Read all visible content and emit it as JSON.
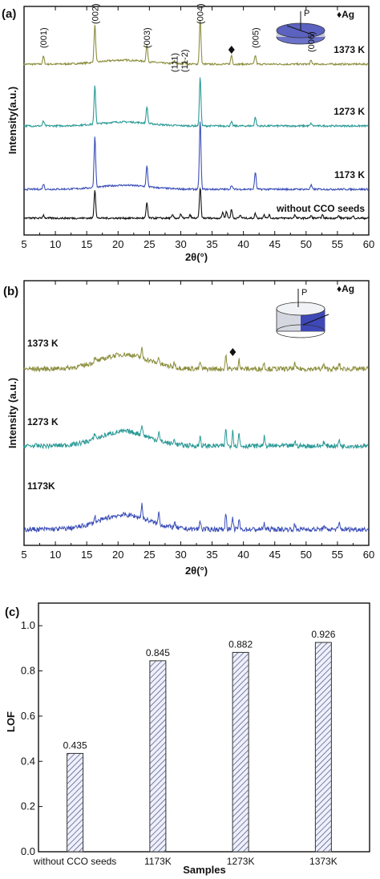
{
  "chart_data": [
    {
      "type": "line",
      "panel_label": "(a)",
      "xlabel": "2θ(°)",
      "ylabel": "Intensity(a.u.)",
      "xlim": [
        5,
        60
      ],
      "x_ticks": [
        5,
        10,
        15,
        20,
        25,
        30,
        35,
        40,
        45,
        50,
        55,
        60
      ],
      "legend": "♦Ag",
      "peak_labels": [
        {
          "text": "(001)",
          "x": 8.1
        },
        {
          "text": "(002)",
          "x": 16.3
        },
        {
          "text": "(003)",
          "x": 24.6
        },
        {
          "text": "(111)",
          "x": 29.0
        },
        {
          "text": "(11-2)",
          "x": 30.6
        },
        {
          "text": "(004)",
          "x": 33.1
        },
        {
          "text": "(005)",
          "x": 41.9
        },
        {
          "text": "(006)",
          "x": 50.8
        }
      ],
      "ag_marker_x": 38.1,
      "series": [
        {
          "name": "1373 K",
          "color": "#8c8f3e",
          "peaks": [
            [
              8.1,
              0.18
            ],
            [
              16.3,
              0.85
            ],
            [
              24.6,
              0.38
            ],
            [
              29.0,
              0.06
            ],
            [
              30.6,
              0.06
            ],
            [
              33.1,
              1.0
            ],
            [
              38.1,
              0.2
            ],
            [
              41.9,
              0.2
            ],
            [
              50.8,
              0.08
            ]
          ]
        },
        {
          "name": "1273 K",
          "color": "#2a9a96",
          "peaks": [
            [
              8.1,
              0.1
            ],
            [
              16.3,
              0.8
            ],
            [
              24.6,
              0.35
            ],
            [
              33.1,
              1.0
            ],
            [
              38.1,
              0.08
            ],
            [
              41.9,
              0.18
            ],
            [
              50.8,
              0.05
            ]
          ]
        },
        {
          "name": "1173 K",
          "color": "#3c4fb8",
          "peaks": [
            [
              8.1,
              0.08
            ],
            [
              16.3,
              0.75
            ],
            [
              24.6,
              0.3
            ],
            [
              33.1,
              1.0
            ],
            [
              38.1,
              0.06
            ],
            [
              41.9,
              0.25
            ],
            [
              50.8,
              0.06
            ]
          ]
        },
        {
          "name": "without CCO seeds",
          "color": "#111111",
          "peaks": [
            [
              8.1,
              0.1
            ],
            [
              16.3,
              0.95
            ],
            [
              24.6,
              0.5
            ],
            [
              28.7,
              0.1
            ],
            [
              30.0,
              0.12
            ],
            [
              31.5,
              0.1
            ],
            [
              33.1,
              1.0
            ],
            [
              36.7,
              0.2
            ],
            [
              37.3,
              0.22
            ],
            [
              38.1,
              0.28
            ],
            [
              39.5,
              0.1
            ],
            [
              41.9,
              0.15
            ],
            [
              43.3,
              0.12
            ],
            [
              44.1,
              0.1
            ],
            [
              48.2,
              0.1
            ],
            [
              50.8,
              0.08
            ],
            [
              52.6,
              0.1
            ],
            [
              55.2,
              0.08
            ],
            [
              57.5,
              0.06
            ]
          ]
        }
      ]
    },
    {
      "type": "line",
      "panel_label": "(b)",
      "xlabel": "2θ(°)",
      "ylabel": "Intensity (a.u.)",
      "xlim": [
        5,
        60
      ],
      "x_ticks": [
        5,
        10,
        15,
        20,
        25,
        30,
        35,
        40,
        45,
        50,
        55,
        60
      ],
      "legend": "♦Ag",
      "ag_marker_x": 38.3,
      "series": [
        {
          "name": "1373 K",
          "color": "#8c8f3e",
          "peaks": [
            [
              16.3,
              0.3
            ],
            [
              23.8,
              0.5
            ],
            [
              26.5,
              0.4
            ],
            [
              29.0,
              0.3
            ],
            [
              33.1,
              0.4
            ],
            [
              37.2,
              0.8
            ],
            [
              39.3,
              0.6
            ],
            [
              43.3,
              0.4
            ],
            [
              48.2,
              0.3
            ],
            [
              52.8,
              0.25
            ],
            [
              55.3,
              0.3
            ]
          ]
        },
        {
          "name": "1273 K",
          "color": "#2a9a96",
          "peaks": [
            [
              16.3,
              0.35
            ],
            [
              23.8,
              0.6
            ],
            [
              26.5,
              0.5
            ],
            [
              29.0,
              0.3
            ],
            [
              33.1,
              0.55
            ],
            [
              37.2,
              1.0
            ],
            [
              38.3,
              0.9
            ],
            [
              39.3,
              0.7
            ],
            [
              43.3,
              0.5
            ],
            [
              48.2,
              0.3
            ],
            [
              52.8,
              0.25
            ],
            [
              55.3,
              0.35
            ]
          ]
        },
        {
          "name": "1173K",
          "color": "#3c4fb8",
          "peaks": [
            [
              16.3,
              0.35
            ],
            [
              23.8,
              0.8
            ],
            [
              26.5,
              0.65
            ],
            [
              29.0,
              0.3
            ],
            [
              33.1,
              0.5
            ],
            [
              37.2,
              0.95
            ],
            [
              38.3,
              0.6
            ],
            [
              39.3,
              0.55
            ],
            [
              43.3,
              0.35
            ],
            [
              48.2,
              0.25
            ],
            [
              52.8,
              0.2
            ],
            [
              55.3,
              0.35
            ]
          ]
        }
      ]
    },
    {
      "type": "bar",
      "panel_label": "(c)",
      "categories": [
        "without CCO seeds",
        "1173K",
        "1273K",
        "1373K"
      ],
      "values": [
        0.435,
        0.845,
        0.882,
        0.926
      ],
      "value_labels": [
        "0.435",
        "0.845",
        "0.882",
        "0.926"
      ],
      "xlabel": "Samples",
      "ylabel": "LOF",
      "ylim": [
        0.0,
        1.1
      ],
      "y_ticks": [
        "0.0",
        "0.2",
        "0.4",
        "0.6",
        "0.8",
        "1.0"
      ],
      "bar_fill": "hatched"
    }
  ]
}
